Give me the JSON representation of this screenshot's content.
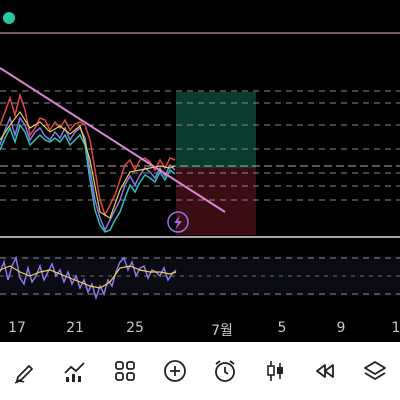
{
  "app": {
    "status_dot_color": "#26c7a0",
    "timeline_labels": [
      "17",
      "21",
      "25",
      "7월",
      "5",
      "9",
      "1"
    ],
    "colors": {
      "trendline": "#d986d6",
      "zone_profit": "#0b3a2f",
      "zone_loss": "#3a0d12",
      "reference_line": "#e2b8c8",
      "dashed_level": "#9a9a9a",
      "lightning_alert": "#9a6ee8"
    }
  },
  "chart_overlay": {
    "alert_icon": "lightning-icon"
  },
  "toolbar": {
    "items": [
      {
        "name": "draw-tool-button",
        "icon": "pen-icon"
      },
      {
        "name": "indicators-button",
        "icon": "chart-indicator-icon"
      },
      {
        "name": "layout-button",
        "icon": "grid-icon"
      },
      {
        "name": "add-button",
        "icon": "plus-circle-icon"
      },
      {
        "name": "alarm-button",
        "icon": "alarm-clock-icon"
      },
      {
        "name": "chart-type-button",
        "icon": "candles-icon"
      },
      {
        "name": "replay-button",
        "icon": "rewind-icon"
      },
      {
        "name": "layers-button",
        "icon": "layers-icon"
      }
    ]
  }
}
